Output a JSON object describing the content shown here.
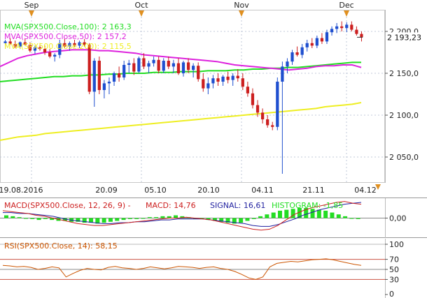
{
  "chart_data": [
    {
      "type": "candlestick",
      "panel": "price",
      "months_top": [
        "Sep",
        "Oct",
        "Nov",
        "Dec"
      ],
      "x_tick_labels": [
        "19.08.2016",
        "20.09",
        "05.10",
        "20.10",
        "04.11",
        "21.11",
        "04.12"
      ],
      "y_tick_labels": [
        "2 200,0",
        "2 150,0",
        "2 100,0",
        "2 050,0"
      ],
      "ylim": [
        2020,
        2225
      ],
      "last_price_label": "2 193,23",
      "legend": [
        {
          "label": "MVA(SPX500.Close,100): 2 163,3",
          "color": "#22dd22"
        },
        {
          "label": "MVA(SPX500.Close,50): 2 157,2",
          "color": "#dd22dd"
        },
        {
          "label": "MVA(SPX500.Close,200): 2 115,5",
          "color": "#eeee22"
        }
      ],
      "up_color": "#1f4fcf",
      "down_color": "#cc1f1f",
      "candles": [
        [
          2186,
          2190,
          2182,
          2188
        ],
        [
          2188,
          2192,
          2184,
          2185
        ],
        [
          2185,
          2189,
          2180,
          2182
        ],
        [
          2182,
          2188,
          2179,
          2187
        ],
        [
          2187,
          2191,
          2183,
          2184
        ],
        [
          2184,
          2187,
          2175,
          2177
        ],
        [
          2177,
          2183,
          2173,
          2181
        ],
        [
          2181,
          2186,
          2177,
          2179
        ],
        [
          2179,
          2183,
          2172,
          2175
        ],
        [
          2175,
          2179,
          2168,
          2170
        ],
        [
          2170,
          2174,
          2164,
          2172
        ],
        [
          2172,
          2190,
          2168,
          2186
        ],
        [
          2186,
          2191,
          2180,
          2182
        ],
        [
          2182,
          2188,
          2177,
          2186
        ],
        [
          2186,
          2190,
          2181,
          2183
        ],
        [
          2183,
          2189,
          2180,
          2187
        ],
        [
          2187,
          2191,
          2182,
          2184
        ],
        [
          2184,
          2186,
          2125,
          2128
        ],
        [
          2128,
          2168,
          2110,
          2165
        ],
        [
          2165,
          2170,
          2125,
          2130
        ],
        [
          2130,
          2142,
          2120,
          2138
        ],
        [
          2138,
          2145,
          2125,
          2140
        ],
        [
          2140,
          2152,
          2135,
          2150
        ],
        [
          2150,
          2158,
          2140,
          2145
        ],
        [
          2145,
          2165,
          2142,
          2160
        ],
        [
          2160,
          2166,
          2150,
          2162
        ],
        [
          2162,
          2168,
          2148,
          2152
        ],
        [
          2152,
          2170,
          2150,
          2168
        ],
        [
          2168,
          2174,
          2155,
          2158
        ],
        [
          2158,
          2165,
          2150,
          2162
        ],
        [
          2162,
          2170,
          2158,
          2166
        ],
        [
          2166,
          2170,
          2150,
          2153
        ],
        [
          2153,
          2168,
          2150,
          2165
        ],
        [
          2165,
          2170,
          2155,
          2158
        ],
        [
          2158,
          2166,
          2150,
          2162
        ],
        [
          2162,
          2168,
          2148,
          2150
        ],
        [
          2150,
          2165,
          2146,
          2163
        ],
        [
          2163,
          2168,
          2150,
          2154
        ],
        [
          2154,
          2162,
          2145,
          2159
        ],
        [
          2159,
          2163,
          2140,
          2143
        ],
        [
          2143,
          2150,
          2128,
          2132
        ],
        [
          2132,
          2145,
          2125,
          2138
        ],
        [
          2138,
          2148,
          2132,
          2144
        ],
        [
          2144,
          2150,
          2135,
          2140
        ],
        [
          2140,
          2148,
          2135,
          2146
        ],
        [
          2146,
          2152,
          2138,
          2142
        ],
        [
          2142,
          2150,
          2135,
          2147
        ],
        [
          2147,
          2155,
          2140,
          2144
        ],
        [
          2144,
          2150,
          2130,
          2134
        ],
        [
          2134,
          2140,
          2122,
          2126
        ],
        [
          2126,
          2132,
          2108,
          2112
        ],
        [
          2112,
          2118,
          2098,
          2103
        ],
        [
          2103,
          2108,
          2090,
          2095
        ],
        [
          2095,
          2100,
          2085,
          2088
        ],
        [
          2088,
          2092,
          2082,
          2086
        ],
        [
          2086,
          2145,
          2082,
          2140
        ],
        [
          2140,
          2164,
          2030,
          2158
        ],
        [
          2158,
          2168,
          2150,
          2164
        ],
        [
          2164,
          2178,
          2160,
          2175
        ],
        [
          2175,
          2182,
          2170,
          2172
        ],
        [
          2172,
          2185,
          2168,
          2181
        ],
        [
          2181,
          2190,
          2176,
          2186
        ],
        [
          2186,
          2192,
          2180,
          2183
        ],
        [
          2183,
          2195,
          2180,
          2192
        ],
        [
          2192,
          2198,
          2185,
          2188
        ],
        [
          2188,
          2202,
          2185,
          2199
        ],
        [
          2199,
          2206,
          2195,
          2203
        ],
        [
          2203,
          2210,
          2198,
          2206
        ],
        [
          2206,
          2212,
          2200,
          2204
        ],
        [
          2204,
          2211,
          2199,
          2208
        ],
        [
          2208,
          2212,
          2200,
          2202
        ],
        [
          2202,
          2206,
          2195,
          2197
        ],
        [
          2197,
          2200,
          2188,
          2193
        ]
      ],
      "ma_100": [
        2140,
        2141,
        2142,
        2143,
        2144,
        2145,
        2146,
        2146,
        2147,
        2147,
        2148,
        2148,
        2149,
        2149,
        2150,
        2150,
        2150,
        2151,
        2151,
        2151,
        2152,
        2152,
        2152,
        2153,
        2153,
        2153,
        2154,
        2154,
        2155,
        2155,
        2156,
        2156,
        2157,
        2157,
        2158,
        2159,
        2160,
        2161,
        2162,
        2163,
        2163
      ],
      "ma_50": [
        2158,
        2163,
        2168,
        2171,
        2173,
        2175,
        2176,
        2177,
        2178,
        2178,
        2178,
        2177,
        2177,
        2176,
        2175,
        2174,
        2172,
        2171,
        2170,
        2169,
        2168,
        2167,
        2166,
        2165,
        2164,
        2162,
        2160,
        2159,
        2158,
        2157,
        2156,
        2155,
        2154,
        2155,
        2156,
        2158,
        2159,
        2159,
        2160,
        2160,
        2157
      ],
      "ma_200": [
        2070,
        2072,
        2074,
        2075,
        2076,
        2078,
        2079,
        2080,
        2081,
        2082,
        2083,
        2084,
        2085,
        2086,
        2087,
        2088,
        2089,
        2090,
        2091,
        2092,
        2093,
        2094,
        2095,
        2096,
        2097,
        2098,
        2099,
        2100,
        2101,
        2102,
        2103,
        2104,
        2105,
        2106,
        2107,
        2108,
        2110,
        2111,
        2112,
        2113,
        2115
      ]
    },
    {
      "type": "bar",
      "panel": "macd",
      "legend": [
        {
          "label": "MACD(SPX500.Close, 12, 26, 9) -",
          "color": "#cc1f1f"
        },
        {
          "label": "MACD: 14,76",
          "color": "#cc1f1f"
        },
        {
          "label": "SIGNAL: 16,61",
          "color": "#1f1f9f"
        },
        {
          "label": "HISTOGRAM: -1,85",
          "color": "#22dd22"
        }
      ],
      "y_tick_labels": [
        "0,00"
      ],
      "ylim": [
        -20,
        20
      ],
      "histogram": [
        3,
        2,
        1,
        0,
        -1,
        -2,
        -1,
        -2,
        -3,
        -3,
        -4,
        -4,
        -5,
        -5,
        -6,
        -5,
        -4,
        -3,
        -2,
        -1,
        -1,
        0,
        1,
        1,
        2,
        2,
        3,
        2,
        1,
        0,
        -1,
        -2,
        -3,
        -4,
        -5,
        -6,
        -5,
        -3,
        -1,
        2,
        4,
        6,
        8,
        9,
        10,
        11,
        11,
        10,
        9,
        8,
        6,
        4,
        2,
        0,
        -1
      ],
      "macd_line": [
        8,
        7,
        6,
        5,
        3,
        2,
        0,
        -2,
        -4,
        -6,
        -7,
        -8,
        -8,
        -7,
        -6,
        -5,
        -4,
        -3,
        -2,
        -1,
        0,
        0,
        1,
        0,
        -1,
        -2,
        -4,
        -6,
        -8,
        -10,
        -12,
        -13,
        -12,
        -8,
        -2,
        4,
        8,
        11,
        13,
        15,
        17,
        18,
        16,
        15
      ],
      "signal_line": [
        6,
        6,
        5,
        5,
        4,
        3,
        2,
        0,
        -2,
        -3,
        -4,
        -5,
        -6,
        -6,
        -5,
        -5,
        -4,
        -4,
        -3,
        -2,
        -2,
        -1,
        -1,
        -1,
        -1,
        -2,
        -3,
        -4,
        -5,
        -6,
        -8,
        -9,
        -9,
        -7,
        -4,
        -1,
        3,
        6,
        9,
        11,
        13,
        15,
        16,
        17
      ]
    },
    {
      "type": "line",
      "panel": "rsi",
      "legend": [
        {
          "label": "RSI(SPX500.Close, 14): 58,15",
          "color": "#cc5500"
        }
      ],
      "y_tick_labels": [
        "100",
        "70",
        "50",
        "30",
        "0"
      ],
      "levels": [
        70,
        50,
        30
      ],
      "ylim": [
        0,
        100
      ],
      "values": [
        58,
        57,
        55,
        56,
        54,
        50,
        52,
        55,
        53,
        35,
        42,
        48,
        52,
        50,
        49,
        54,
        56,
        53,
        52,
        50,
        52,
        55,
        53,
        51,
        53,
        56,
        55,
        54,
        52,
        54,
        55,
        52,
        50,
        46,
        40,
        33,
        30,
        35,
        55,
        62,
        64,
        66,
        65,
        67,
        69,
        70,
        71,
        69,
        66,
        63,
        60,
        58
      ]
    }
  ]
}
